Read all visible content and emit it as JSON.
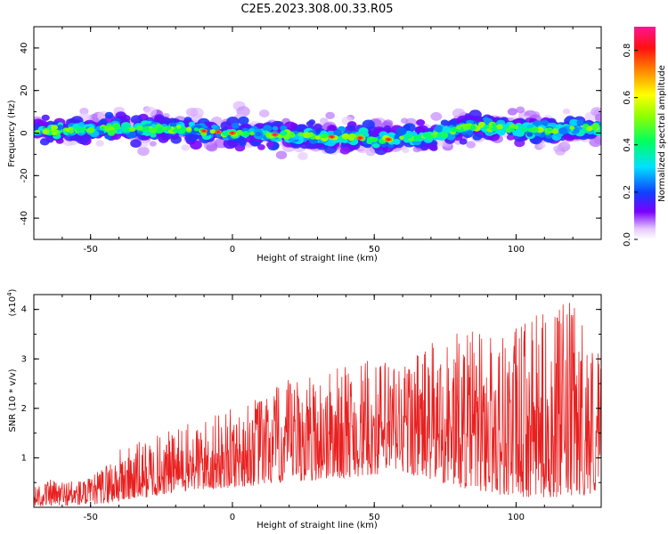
{
  "figure_title": "C2E5.2023.308.00.33.R05",
  "chart_data": [
    {
      "type": "heatmap",
      "title": "",
      "xlabel": "Height of straight line (km)",
      "ylabel": "Frequency (Hz)",
      "xlim": [
        -70,
        130
      ],
      "ylim": [
        -50,
        50
      ],
      "xticks": [
        -50,
        0,
        50,
        100
      ],
      "yticks": [
        -40,
        -20,
        0,
        20,
        40
      ],
      "colorbar": {
        "label": "Normalized spectral amplitude",
        "range": [
          0,
          0.9
        ],
        "ticks": [
          0.0,
          0.2,
          0.4,
          0.6,
          0.8
        ],
        "colormap": "rainbow (white-purple-blue-cyan-green-yellow-red-magenta)"
      },
      "band": {
        "center_frequency_profile": [
          {
            "x": -70,
            "y": 1
          },
          {
            "x": -40,
            "y": 2
          },
          {
            "x": -20,
            "y": 2
          },
          {
            "x": 0,
            "y": 0
          },
          {
            "x": 20,
            "y": -1
          },
          {
            "x": 40,
            "y": -2
          },
          {
            "x": 55,
            "y": -3
          },
          {
            "x": 70,
            "y": -1
          },
          {
            "x": 85,
            "y": 3
          },
          {
            "x": 100,
            "y": 2
          },
          {
            "x": 115,
            "y": 1
          },
          {
            "x": 130,
            "y": 3
          }
        ],
        "half_width_hz": 6,
        "peak_amplitude_locations_km": [
          -10,
          -5,
          0,
          15,
          35,
          45,
          55
        ]
      }
    },
    {
      "type": "line",
      "title": "",
      "xlabel": "Height of straight line (km)",
      "ylabel": "SNR (10 * v/v)",
      "scale_label": "(x10",
      "scale_exp": "4",
      "scale_close": ")",
      "xlim": [
        -70,
        130
      ],
      "ylim": [
        0,
        4.3
      ],
      "xticks": [
        -50,
        0,
        50,
        100
      ],
      "yticks": [
        1,
        2,
        3,
        4
      ],
      "series": [
        {
          "color": "#e82020",
          "envelope": [
            {
              "x": -70,
              "low": 0.02,
              "high": 0.55
            },
            {
              "x": -50,
              "low": 0.05,
              "high": 0.6
            },
            {
              "x": -40,
              "low": 0.1,
              "high": 1.2
            },
            {
              "x": -20,
              "low": 0.3,
              "high": 1.6
            },
            {
              "x": 0,
              "low": 0.4,
              "high": 2.0
            },
            {
              "x": 20,
              "low": 0.5,
              "high": 2.6
            },
            {
              "x": 40,
              "low": 0.6,
              "high": 2.9
            },
            {
              "x": 60,
              "low": 0.7,
              "high": 3.1
            },
            {
              "x": 80,
              "low": 0.4,
              "high": 3.6
            },
            {
              "x": 100,
              "low": 0.2,
              "high": 3.7
            },
            {
              "x": 120,
              "low": 0.2,
              "high": 4.2
            },
            {
              "x": 130,
              "low": 0.3,
              "high": 3.2
            }
          ]
        }
      ]
    }
  ]
}
